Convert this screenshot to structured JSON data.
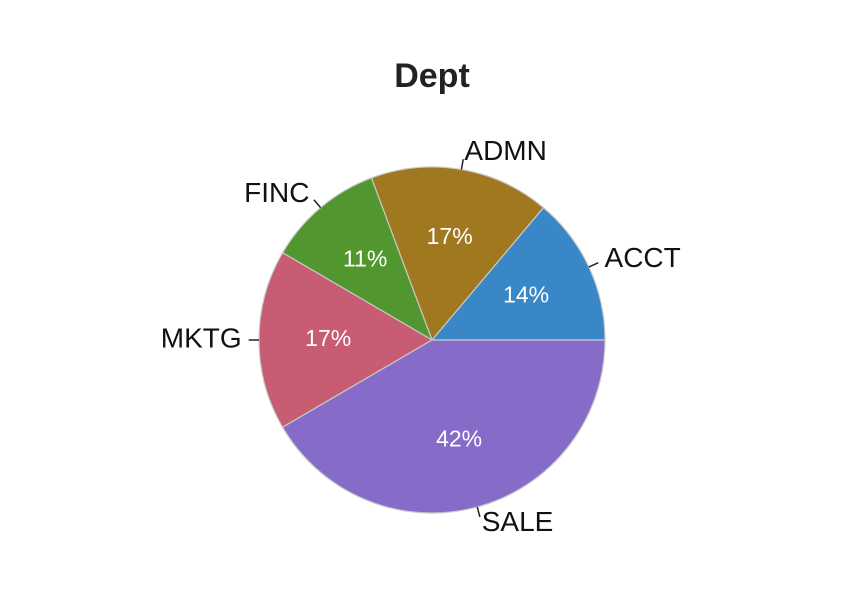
{
  "chart_data": {
    "type": "pie",
    "title": "Dept",
    "categories": [
      "ACCT",
      "ADMN",
      "FINC",
      "MKTG",
      "SALE"
    ],
    "values": [
      14,
      17,
      11,
      17,
      42
    ],
    "value_labels": [
      "14%",
      "17%",
      "11%",
      "17%",
      "42%"
    ],
    "colors": [
      "#3a87c8",
      "#a07820",
      "#52962f",
      "#c85c73",
      "#866bc9"
    ],
    "start_angle": 0,
    "direction": "counterclockwise"
  }
}
